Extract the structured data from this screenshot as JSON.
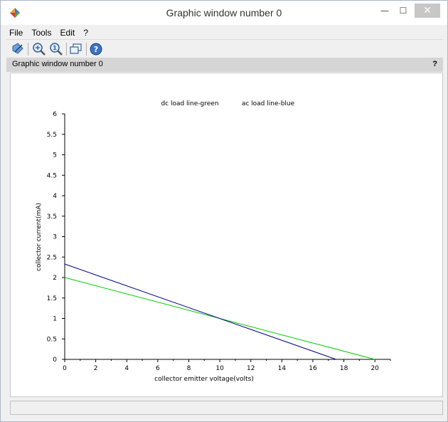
{
  "window": {
    "title": "Graphic window number 0",
    "controls": {
      "minimize": "—",
      "maximize": "☐",
      "close": "✕"
    }
  },
  "menubar": {
    "items": [
      "File",
      "Tools",
      "Edit",
      "?"
    ]
  },
  "toolbar": {
    "tools": [
      {
        "name": "datatip-icon"
      },
      {
        "name": "zoom-icon"
      },
      {
        "name": "unzoom-icon"
      },
      {
        "name": "rotate-3d-icon"
      },
      {
        "name": "help-icon"
      }
    ]
  },
  "panel": {
    "title": "Graphic window number 0",
    "help": "?"
  },
  "plot": {
    "title_left": "dc load line-green",
    "title_right": "ac load line-blue",
    "ylabel": "collector current(mA)",
    "xlabel": "collector emitter voltage(volts)",
    "colors": {
      "dc": "#00cc00",
      "ac": "#000080"
    }
  },
  "chart_data": {
    "type": "line",
    "title": "dc load line-green        ac load line-blue",
    "xlabel": "collector emitter voltage(volts)",
    "ylabel": "collector current(mA)",
    "xlim": [
      0,
      21
    ],
    "ylim": [
      0,
      6
    ],
    "xticks": [
      0,
      2,
      4,
      6,
      8,
      10,
      12,
      14,
      16,
      18,
      20
    ],
    "xticklabels": [
      "0",
      "2",
      "4",
      "6",
      "8",
      "10",
      "12",
      "14",
      "16",
      "18",
      "20"
    ],
    "yticks": [
      0,
      0.5,
      1,
      1.5,
      2,
      2.5,
      3,
      3.5,
      4,
      4.5,
      5,
      5.5,
      6
    ],
    "yticklabels": [
      "0",
      "0.5",
      "1",
      "1.5",
      "2",
      "2.5",
      "3",
      "3.5",
      "4",
      "4.5",
      "5",
      "5.5",
      "6"
    ],
    "grid": false,
    "series": [
      {
        "color": "#00cc00",
        "x": [
          0,
          20
        ],
        "y": [
          2,
          0
        ]
      },
      {
        "color": "#000080",
        "x": [
          0,
          17.5
        ],
        "y": [
          2.33,
          0
        ]
      }
    ]
  }
}
